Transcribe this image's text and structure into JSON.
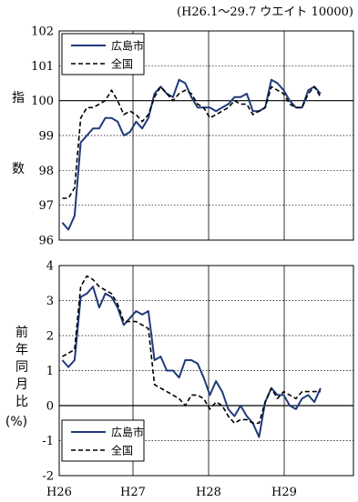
{
  "header": {
    "note": "(H26.1～29.7 ウエイト 10000)"
  },
  "x_ticks": [
    "H26",
    "H27",
    "H28",
    "H29"
  ],
  "colors": {
    "hiroshima": "#1f3a7a",
    "national": "#000000"
  },
  "chart_data": [
    {
      "type": "line",
      "ylabel": "指数",
      "ylim": [
        96,
        102
      ],
      "yticks": [
        96,
        97,
        98,
        99,
        100,
        101,
        102
      ],
      "x": [
        "H26.1",
        "H26.2",
        "H26.3",
        "H26.4",
        "H26.5",
        "H26.6",
        "H26.7",
        "H26.8",
        "H26.9",
        "H26.10",
        "H26.11",
        "H26.12",
        "H27.1",
        "H27.2",
        "H27.3",
        "H27.4",
        "H27.5",
        "H27.6",
        "H27.7",
        "H27.8",
        "H27.9",
        "H27.10",
        "H27.11",
        "H27.12",
        "H28.1",
        "H28.2",
        "H28.3",
        "H28.4",
        "H28.5",
        "H28.6",
        "H28.7",
        "H28.8",
        "H28.9",
        "H28.10",
        "H28.11",
        "H28.12",
        "H29.1",
        "H29.2",
        "H29.3",
        "H29.4",
        "H29.5",
        "H29.6",
        "H29.7"
      ],
      "series": [
        {
          "name": "広島市",
          "style": "solid",
          "values": [
            96.5,
            96.3,
            96.7,
            98.8,
            99.0,
            99.2,
            99.2,
            99.5,
            99.5,
            99.4,
            99.0,
            99.1,
            99.4,
            99.2,
            99.5,
            100.2,
            100.4,
            100.2,
            100.1,
            100.6,
            100.5,
            100.1,
            99.8,
            99.8,
            99.8,
            99.7,
            99.8,
            99.9,
            100.1,
            100.1,
            100.2,
            99.7,
            99.7,
            99.8,
            100.6,
            100.5,
            100.3,
            100.0,
            99.8,
            99.8,
            100.3,
            100.4,
            100.2
          ]
        },
        {
          "name": "全国",
          "style": "dashed",
          "values": [
            97.2,
            97.2,
            97.5,
            99.5,
            99.8,
            99.8,
            99.9,
            100.0,
            100.3,
            100.0,
            99.6,
            99.7,
            99.6,
            99.4,
            99.6,
            100.1,
            100.4,
            100.2,
            100.0,
            100.2,
            100.3,
            100.2,
            99.9,
            99.8,
            99.5,
            99.6,
            99.7,
            99.8,
            100.0,
            99.9,
            99.9,
            99.6,
            99.7,
            99.8,
            100.4,
            100.3,
            100.2,
            99.9,
            99.8,
            99.8,
            100.2,
            100.4,
            100.1
          ]
        }
      ]
    },
    {
      "type": "line",
      "ylabel": "前年同月比(%)",
      "ylim": [
        -2,
        4
      ],
      "yticks": [
        -2,
        -1,
        0,
        1,
        2,
        3,
        4
      ],
      "x": [
        "H26.1",
        "H26.2",
        "H26.3",
        "H26.4",
        "H26.5",
        "H26.6",
        "H26.7",
        "H26.8",
        "H26.9",
        "H26.10",
        "H26.11",
        "H26.12",
        "H27.1",
        "H27.2",
        "H27.3",
        "H27.4",
        "H27.5",
        "H27.6",
        "H27.7",
        "H27.8",
        "H27.9",
        "H27.10",
        "H27.11",
        "H27.12",
        "H28.1",
        "H28.2",
        "H28.3",
        "H28.4",
        "H28.5",
        "H28.6",
        "H28.7",
        "H28.8",
        "H28.9",
        "H28.10",
        "H28.11",
        "H28.12",
        "H29.1",
        "H29.2",
        "H29.3",
        "H29.4",
        "H29.5",
        "H29.6",
        "H29.7"
      ],
      "series": [
        {
          "name": "広島市",
          "style": "solid",
          "values": [
            1.3,
            1.1,
            1.3,
            3.1,
            3.2,
            3.4,
            2.8,
            3.2,
            3.1,
            2.8,
            2.3,
            2.5,
            2.7,
            2.6,
            2.7,
            1.3,
            1.4,
            1.0,
            1.0,
            0.8,
            1.3,
            1.3,
            1.2,
            0.8,
            0.3,
            0.7,
            0.4,
            -0.1,
            -0.3,
            0.0,
            -0.3,
            -0.5,
            -0.9,
            0.1,
            0.5,
            0.3,
            0.3,
            0.0,
            -0.1,
            0.2,
            0.3,
            0.1,
            0.5
          ]
        },
        {
          "name": "全国",
          "style": "dashed",
          "values": [
            1.4,
            1.5,
            1.6,
            3.4,
            3.7,
            3.6,
            3.4,
            3.3,
            3.2,
            2.9,
            2.4,
            2.4,
            2.4,
            2.3,
            2.2,
            0.6,
            0.5,
            0.4,
            0.3,
            0.2,
            0.0,
            0.3,
            0.3,
            0.2,
            -0.1,
            0.1,
            0.0,
            -0.3,
            -0.5,
            -0.4,
            -0.4,
            -0.5,
            -0.5,
            0.1,
            0.5,
            0.2,
            0.4,
            0.3,
            0.2,
            0.4,
            0.4,
            0.4,
            0.4
          ]
        }
      ]
    }
  ]
}
